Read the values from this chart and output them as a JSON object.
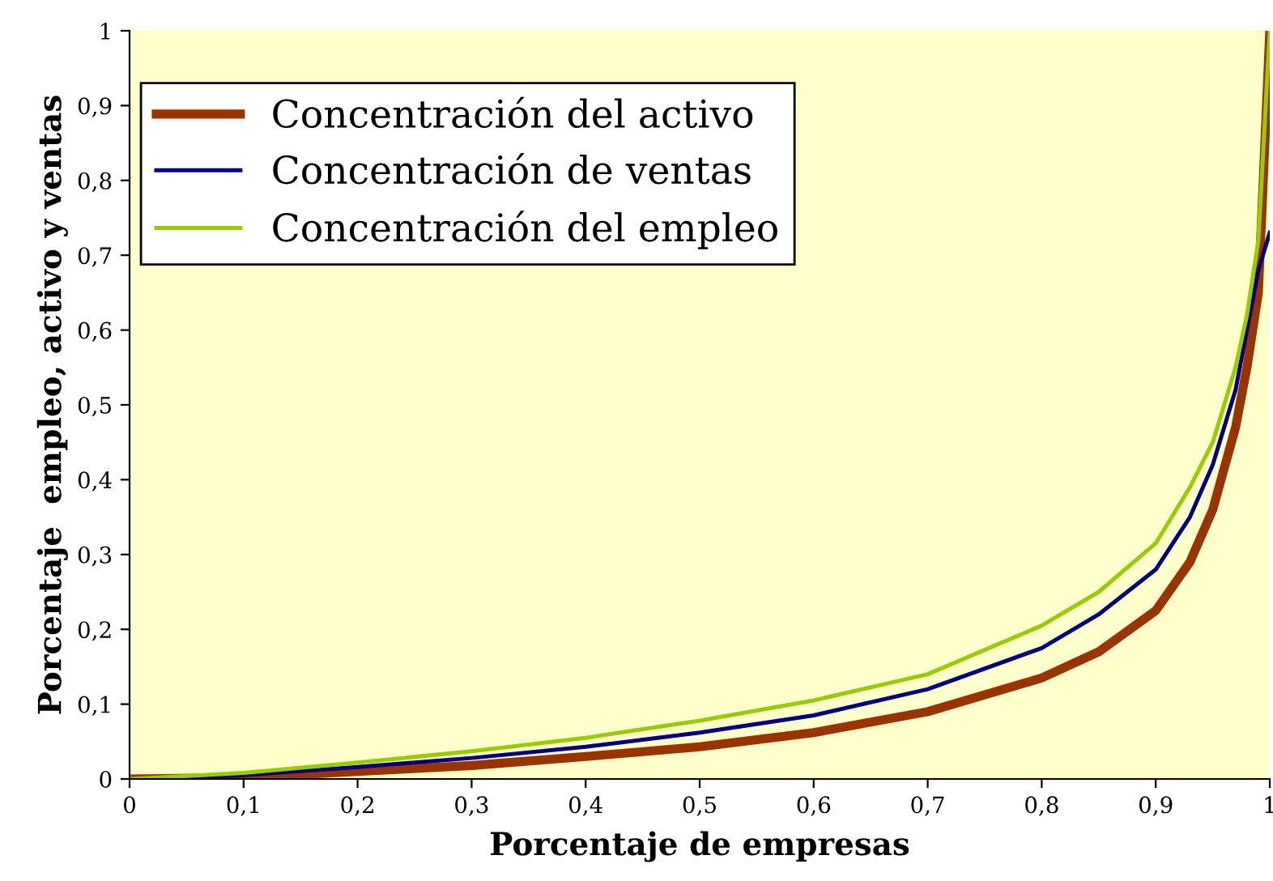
{
  "chart_data": {
    "type": "line",
    "xlabel": "Porcentaje de empresas",
    "ylabel": "Porcentaje  empleo, activo y ventas",
    "xlim": [
      0,
      1
    ],
    "ylim": [
      0,
      1
    ],
    "xticks": [
      0,
      {
        "value": 0.1,
        "label": "0,1"
      },
      {
        "value": 0.2,
        "label": "0,2"
      },
      {
        "value": 0.3,
        "label": "0,3"
      },
      {
        "value": 0.4,
        "label": "0,4"
      },
      {
        "value": 0.5,
        "label": "0,5"
      },
      {
        "value": 0.6,
        "label": "0,6"
      },
      {
        "value": 0.7,
        "label": "0,7"
      },
      {
        "value": 0.8,
        "label": "0,8"
      },
      {
        "value": 0.9,
        "label": "0,9"
      },
      1
    ],
    "yticks": [
      0,
      {
        "value": 0.1,
        "label": "0,1"
      },
      {
        "value": 0.2,
        "label": "0,2"
      },
      {
        "value": 0.3,
        "label": "0,3"
      },
      {
        "value": 0.4,
        "label": "0,4"
      },
      {
        "value": 0.5,
        "label": "0,5"
      },
      {
        "value": 0.6,
        "label": "0,6"
      },
      {
        "value": 0.7,
        "label": "0,7"
      },
      {
        "value": 0.8,
        "label": "0,8"
      },
      {
        "value": 0.9,
        "label": "0,9"
      },
      1
    ],
    "x": [
      0,
      0.1,
      0.2,
      0.3,
      0.4,
      0.5,
      0.6,
      0.7,
      0.8,
      0.85,
      0.9,
      0.93,
      0.95,
      0.97,
      0.98,
      0.99,
      1
    ],
    "series": [
      {
        "name": "Concentración del activo",
        "color": "#993300",
        "values": [
          0,
          0.002,
          0.01,
          0.018,
          0.03,
          0.043,
          0.062,
          0.09,
          0.135,
          0.17,
          0.225,
          0.29,
          0.36,
          0.47,
          0.55,
          0.65,
          1
        ]
      },
      {
        "name": "Concentración de ventas",
        "color": "#000080",
        "values": [
          0,
          0.005,
          0.016,
          0.028,
          0.043,
          0.062,
          0.085,
          0.12,
          0.175,
          0.22,
          0.28,
          0.35,
          0.42,
          0.52,
          0.6,
          0.68,
          0.73
        ]
      },
      {
        "name": "Concentración del empleo",
        "color": "#99cc00",
        "values": [
          0,
          0.008,
          0.022,
          0.037,
          0.055,
          0.078,
          0.105,
          0.14,
          0.205,
          0.25,
          0.315,
          0.39,
          0.45,
          0.55,
          0.62,
          0.72,
          1
        ]
      }
    ],
    "grid": false,
    "legend": "top left",
    "marker": "none",
    "line_style": "solid"
  }
}
